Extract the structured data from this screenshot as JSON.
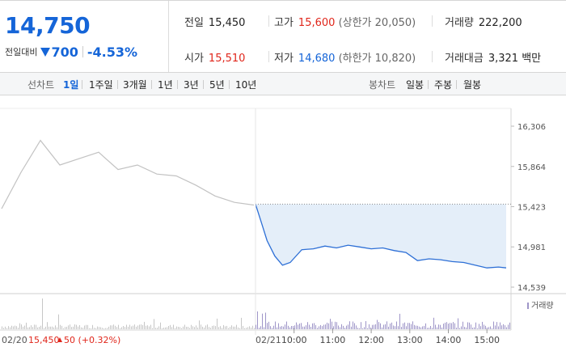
{
  "summary": {
    "price": "14,750",
    "change_label": "전일대비",
    "change_value": "700",
    "change_pct": "-4.53%",
    "prev_label": "전일",
    "prev_value": "15,450",
    "open_label": "시가",
    "open_value": "15,510",
    "high_label": "고가",
    "high_value": "15,600",
    "upper_limit": "(상한가 20,050)",
    "low_label": "저가",
    "low_value": "14,680",
    "lower_limit": "(하한가 10,820)",
    "volume_label": "거래량",
    "volume_value": "222,200",
    "amount_label": "거래대금",
    "amount_value": "3,321 백만",
    "colors": {
      "down": "#1565d8",
      "up": "#e0261b"
    }
  },
  "tabs": {
    "line_label": "선차트",
    "line_periods": [
      "1일",
      "1주일",
      "3개월",
      "1년",
      "3년",
      "5년",
      "10년"
    ],
    "selected": "1일",
    "candle_label": "봉차트",
    "candle_periods": [
      "일봉",
      "주봉",
      "월봉"
    ]
  },
  "chart_data": {
    "type": "line",
    "y_ticks": [
      "16,306",
      "15,864",
      "15,423",
      "14,981",
      "14,539"
    ],
    "ylim": [
      14539,
      16306
    ],
    "grid": false,
    "volume_label": "거래량",
    "prev_day": {
      "date": "02/20",
      "close": 15450,
      "close_label": "15,450",
      "change_label": "50 (+0.32%)",
      "x": [
        0,
        0.5,
        1,
        1.5,
        2,
        2.5,
        3,
        3.5,
        4,
        4.5,
        5,
        5.5,
        6,
        6.5
      ],
      "price": [
        15400,
        15800,
        16150,
        15880,
        15950,
        16020,
        15830,
        15880,
        15780,
        15760,
        15660,
        15540,
        15470,
        15440
      ]
    },
    "today": {
      "date": "02/21",
      "x_ticks": [
        "10:00",
        "11:00",
        "12:00",
        "13:00",
        "14:00",
        "15:00"
      ],
      "x": [
        9.0,
        9.15,
        9.3,
        9.5,
        9.7,
        9.9,
        10.2,
        10.5,
        10.8,
        11.1,
        11.4,
        11.7,
        12.0,
        12.3,
        12.6,
        12.9,
        13.2,
        13.5,
        13.8,
        14.1,
        14.4,
        14.7,
        15.0,
        15.3,
        15.5
      ],
      "price": [
        15450,
        15250,
        15050,
        14880,
        14780,
        14810,
        14950,
        14960,
        14990,
        14970,
        15000,
        14980,
        14960,
        14970,
        14940,
        14920,
        14830,
        14850,
        14840,
        14820,
        14810,
        14780,
        14750,
        14760,
        14750
      ]
    },
    "colors": {
      "prev_line": "#c2c2c2",
      "today_line": "#2d6fd6",
      "area_fill": "#e4eef9",
      "volume": "#9e95c8"
    }
  }
}
